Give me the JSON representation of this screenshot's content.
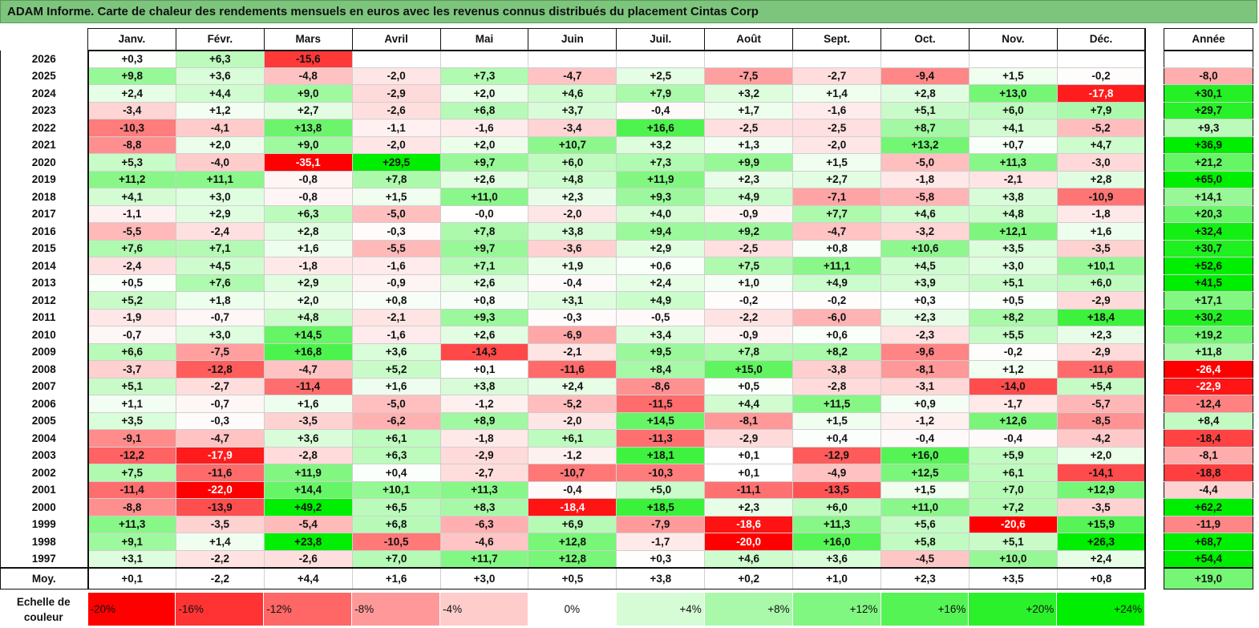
{
  "title": "ADAM Informe. Carte de chaleur des rendements mensuels en euros avec les revenus connus distribués du placement Cintas Corp",
  "chart_data": {
    "type": "heatmap",
    "title": "ADAM Informe. Carte de chaleur des rendements mensuels en euros avec les revenus connus distribués du placement Cintas Corp",
    "months": [
      "Janv.",
      "Févr.",
      "Mars",
      "Avril",
      "Mai",
      "Juin",
      "Juil.",
      "Août",
      "Sept.",
      "Oct.",
      "Nov.",
      "Déc."
    ],
    "year_header": "Année",
    "rows": [
      {
        "year": "2026",
        "values": [
          "+0,3",
          "+6,3",
          "-15,6",
          "",
          "",
          "",
          "",
          "",
          "",
          "",
          "",
          ""
        ],
        "annual": ""
      },
      {
        "year": "2025",
        "values": [
          "+9,8",
          "+3,6",
          "-4,8",
          "-2,0",
          "+7,3",
          "-4,7",
          "+2,5",
          "-7,5",
          "-2,7",
          "-9,4",
          "+1,5",
          "-0,2"
        ],
        "annual": "-8,0"
      },
      {
        "year": "2024",
        "values": [
          "+2,4",
          "+4,4",
          "+9,0",
          "-2,9",
          "+2,0",
          "+4,6",
          "+7,9",
          "+3,2",
          "+1,4",
          "+2,8",
          "+13,0",
          "-17,8"
        ],
        "annual": "+30,1"
      },
      {
        "year": "2023",
        "values": [
          "-3,4",
          "+1,2",
          "+2,7",
          "-2,6",
          "+6,8",
          "+3,7",
          "-0,4",
          "+1,7",
          "-1,6",
          "+5,1",
          "+6,0",
          "+7,9"
        ],
        "annual": "+29,7"
      },
      {
        "year": "2022",
        "values": [
          "-10,3",
          "-4,1",
          "+13,8",
          "-1,1",
          "-1,6",
          "-3,4",
          "+16,6",
          "-2,5",
          "-2,5",
          "+8,7",
          "+4,1",
          "-5,2"
        ],
        "annual": "+9,3"
      },
      {
        "year": "2021",
        "values": [
          "-8,8",
          "+2,0",
          "+9,0",
          "-2,0",
          "+2,0",
          "+10,7",
          "+3,2",
          "+1,3",
          "-2,0",
          "+13,2",
          "+0,7",
          "+4,7"
        ],
        "annual": "+36,9"
      },
      {
        "year": "2020",
        "values": [
          "+5,3",
          "-4,0",
          "-35,1",
          "+29,5",
          "+9,7",
          "+6,0",
          "+7,3",
          "+9,9",
          "+1,5",
          "-5,0",
          "+11,3",
          "-3,0"
        ],
        "annual": "+21,2"
      },
      {
        "year": "2019",
        "values": [
          "+11,2",
          "+11,1",
          "-0,8",
          "+7,8",
          "+2,6",
          "+4,8",
          "+11,9",
          "+2,3",
          "+2,7",
          "-1,8",
          "-2,1",
          "+2,8"
        ],
        "annual": "+65,0"
      },
      {
        "year": "2018",
        "values": [
          "+4,1",
          "+3,0",
          "-0,8",
          "+1,5",
          "+11,0",
          "+2,3",
          "+9,3",
          "+4,9",
          "-7,1",
          "-5,8",
          "+3,8",
          "-10,9"
        ],
        "annual": "+14,1"
      },
      {
        "year": "2017",
        "values": [
          "-1,1",
          "+2,9",
          "+6,3",
          "-5,0",
          "-0,0",
          "-2,0",
          "+4,0",
          "-0,9",
          "+7,7",
          "+4,6",
          "+4,8",
          "-1,8"
        ],
        "annual": "+20,3"
      },
      {
        "year": "2016",
        "values": [
          "-5,5",
          "-2,4",
          "+2,8",
          "-0,3",
          "+7,8",
          "+3,8",
          "+9,4",
          "+9,2",
          "-4,7",
          "-3,2",
          "+12,1",
          "+1,6"
        ],
        "annual": "+32,4"
      },
      {
        "year": "2015",
        "values": [
          "+7,6",
          "+7,1",
          "+1,6",
          "-5,5",
          "+9,7",
          "-3,6",
          "+2,9",
          "-2,5",
          "+0,8",
          "+10,6",
          "+3,5",
          "-3,5"
        ],
        "annual": "+30,7"
      },
      {
        "year": "2014",
        "values": [
          "-2,4",
          "+4,5",
          "-1,8",
          "-1,6",
          "+7,1",
          "+1,9",
          "+0,6",
          "+7,5",
          "+11,1",
          "+4,5",
          "+3,0",
          "+10,1"
        ],
        "annual": "+52,6"
      },
      {
        "year": "2013",
        "values": [
          "+0,5",
          "+7,6",
          "+2,9",
          "-0,9",
          "+2,6",
          "-0,4",
          "+2,4",
          "+1,0",
          "+4,9",
          "+3,9",
          "+5,1",
          "+6,0"
        ],
        "annual": "+41,5"
      },
      {
        "year": "2012",
        "values": [
          "+5,2",
          "+1,8",
          "+2,0",
          "+0,8",
          "+0,8",
          "+3,1",
          "+4,9",
          "-0,2",
          "-0,2",
          "+0,3",
          "+0,5",
          "-2,9"
        ],
        "annual": "+17,1"
      },
      {
        "year": "2011",
        "values": [
          "-1,9",
          "-0,7",
          "+4,8",
          "-2,1",
          "+9,3",
          "-0,3",
          "-0,5",
          "-2,2",
          "-6,0",
          "+2,3",
          "+8,2",
          "+18,4"
        ],
        "annual": "+30,2"
      },
      {
        "year": "2010",
        "values": [
          "-0,7",
          "+3,0",
          "+14,5",
          "-1,6",
          "+2,6",
          "-6,9",
          "+3,4",
          "-0,9",
          "+0,6",
          "-2,3",
          "+5,5",
          "+2,3"
        ],
        "annual": "+19,2"
      },
      {
        "year": "2009",
        "values": [
          "+6,6",
          "-7,5",
          "+16,8",
          "+3,6",
          "-14,3",
          "-2,1",
          "+9,5",
          "+7,8",
          "+8,2",
          "-9,6",
          "-0,2",
          "-2,9"
        ],
        "annual": "+11,8"
      },
      {
        "year": "2008",
        "values": [
          "-3,7",
          "-12,8",
          "-4,7",
          "+5,2",
          "+0,1",
          "-11,6",
          "+8,4",
          "+15,0",
          "-3,8",
          "-8,1",
          "+1,2",
          "-11,6"
        ],
        "annual": "-26,4"
      },
      {
        "year": "2007",
        "values": [
          "+5,1",
          "-2,7",
          "-11,4",
          "+1,6",
          "+3,8",
          "+2,4",
          "-8,6",
          "+0,5",
          "-2,8",
          "-3,1",
          "-14,0",
          "+5,4"
        ],
        "annual": "-22,9"
      },
      {
        "year": "2006",
        "values": [
          "+1,1",
          "-0,7",
          "+1,6",
          "-5,0",
          "-1,2",
          "-5,2",
          "-11,5",
          "+4,4",
          "+11,5",
          "+0,9",
          "-1,7",
          "-5,7"
        ],
        "annual": "-12,4"
      },
      {
        "year": "2005",
        "values": [
          "+3,5",
          "-0,3",
          "-3,5",
          "-6,2",
          "+8,9",
          "-2,0",
          "+14,5",
          "-8,1",
          "+1,5",
          "-1,2",
          "+12,6",
          "-8,5"
        ],
        "annual": "+8,4"
      },
      {
        "year": "2004",
        "values": [
          "-9,1",
          "-4,7",
          "+3,6",
          "+6,1",
          "-1,8",
          "+6,1",
          "-11,3",
          "-2,9",
          "+0,4",
          "-0,4",
          "-0,4",
          "-4,2"
        ],
        "annual": "-18,4"
      },
      {
        "year": "2003",
        "values": [
          "-12,2",
          "-17,9",
          "-2,8",
          "+6,3",
          "-2,9",
          "-1,2",
          "+18,1",
          "+0,1",
          "-12,9",
          "+16,0",
          "+5,9",
          "+2,0"
        ],
        "annual": "-8,1"
      },
      {
        "year": "2002",
        "values": [
          "+7,5",
          "-11,6",
          "+11,9",
          "+0,4",
          "-2,7",
          "-10,7",
          "-10,3",
          "+0,1",
          "-4,9",
          "+12,5",
          "+6,1",
          "-14,1"
        ],
        "annual": "-18,8"
      },
      {
        "year": "2001",
        "values": [
          "-11,4",
          "-22,0",
          "+14,4",
          "+10,1",
          "+11,3",
          "-0,4",
          "+5,0",
          "-11,1",
          "-13,5",
          "+1,5",
          "+7,0",
          "+12,9"
        ],
        "annual": "-4,4"
      },
      {
        "year": "2000",
        "values": [
          "-8,8",
          "-13,9",
          "+49,2",
          "+6,5",
          "+8,3",
          "-18,4",
          "+18,5",
          "+2,3",
          "+6,0",
          "+11,0",
          "+7,2",
          "-3,5"
        ],
        "annual": "+62,2"
      },
      {
        "year": "1999",
        "values": [
          "+11,3",
          "-3,5",
          "-5,4",
          "+6,8",
          "-6,3",
          "+6,9",
          "-7,9",
          "-18,6",
          "+11,3",
          "+5,6",
          "-20,6",
          "+15,9"
        ],
        "annual": "-11,9"
      },
      {
        "year": "1998",
        "values": [
          "+9,1",
          "+1,4",
          "+23,8",
          "-10,5",
          "-4,6",
          "+12,8",
          "-1,7",
          "-20,0",
          "+16,0",
          "+5,8",
          "+5,1",
          "+26,3"
        ],
        "annual": "+68,7"
      },
      {
        "year": "1997",
        "values": [
          "+3,1",
          "-2,2",
          "-2,6",
          "+7,0",
          "+11,7",
          "+12,8",
          "+0,3",
          "+4,6",
          "+3,6",
          "-4,5",
          "+10,0",
          "+2,4"
        ],
        "annual": "+54,4"
      }
    ],
    "average": {
      "label": "Moy.",
      "values": [
        "+0,1",
        "-2,2",
        "+4,4",
        "+1,6",
        "+3,0",
        "+0,5",
        "+3,8",
        "+0,2",
        "+1,0",
        "+2,3",
        "+3,5",
        "+0,8"
      ],
      "annual": "+19,0"
    },
    "color_scale": {
      "label": "Echelle de couleur",
      "steps": [
        "-20%",
        "-16%",
        "-12%",
        "-8%",
        "-4%",
        "0%",
        "+4%",
        "+8%",
        "+12%",
        "+16%",
        "+20%",
        "+24%"
      ],
      "negative_color": "#ff0000",
      "neutral_color": "#ffffff",
      "positive_color": "#00ee00"
    }
  }
}
